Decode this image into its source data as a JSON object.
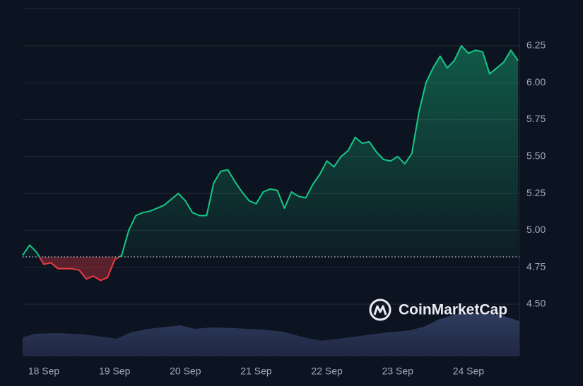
{
  "chart_data": {
    "type": "line",
    "x": [
      17.7,
      17.8,
      17.9,
      18.0,
      18.1,
      18.2,
      18.3,
      18.4,
      18.5,
      18.6,
      18.7,
      18.8,
      18.9,
      19.0,
      19.1,
      19.2,
      19.3,
      19.4,
      19.5,
      19.6,
      19.7,
      19.8,
      19.9,
      20.0,
      20.1,
      20.2,
      20.3,
      20.4,
      20.5,
      20.6,
      20.7,
      20.8,
      20.9,
      21.0,
      21.1,
      21.2,
      21.3,
      21.4,
      21.5,
      21.6,
      21.7,
      21.8,
      21.9,
      22.0,
      22.1,
      22.2,
      22.3,
      22.4,
      22.5,
      22.6,
      22.7,
      22.8,
      22.9,
      23.0,
      23.1,
      23.2,
      23.3,
      23.4,
      23.5,
      23.6,
      23.7,
      23.8,
      23.9,
      24.0,
      24.1,
      24.2,
      24.3,
      24.4,
      24.5,
      24.6,
      24.7
    ],
    "series": [
      {
        "values": [
          4.83,
          4.9,
          4.85,
          4.77,
          4.78,
          4.74,
          4.74,
          4.74,
          4.73,
          4.67,
          4.69,
          4.66,
          4.68,
          4.8,
          4.83,
          5.0,
          5.1,
          5.12,
          5.13,
          5.15,
          5.17,
          5.21,
          5.25,
          5.2,
          5.12,
          5.1,
          5.1,
          5.32,
          5.4,
          5.41,
          5.33,
          5.26,
          5.2,
          5.18,
          5.26,
          5.28,
          5.27,
          5.15,
          5.26,
          5.23,
          5.22,
          5.31,
          5.38,
          5.47,
          5.43,
          5.5,
          5.54,
          5.63,
          5.59,
          5.6,
          5.53,
          5.48,
          5.47,
          5.5,
          5.45,
          5.52,
          5.8,
          6.0,
          6.1,
          6.18,
          6.1,
          6.15,
          6.25,
          6.2,
          6.22,
          6.21,
          6.06,
          6.1,
          6.14,
          6.22,
          6.15
        ],
        "color_up": "#16c784",
        "color_down": "#ea3943"
      }
    ],
    "baseline": 4.82,
    "xlim": [
      17.7,
      24.72
    ],
    "xticks": [
      {
        "value": 18,
        "label": "18 Sep"
      },
      {
        "value": 19,
        "label": "19 Sep"
      },
      {
        "value": 20,
        "label": "20 Sep"
      },
      {
        "value": 21,
        "label": "21 Sep"
      },
      {
        "value": 22,
        "label": "22 Sep"
      },
      {
        "value": 23,
        "label": "23 Sep"
      },
      {
        "value": 24,
        "label": "24 Sep"
      }
    ],
    "ylim": [
      4.146,
      6.503
    ],
    "yticks": [
      {
        "value": 4.5,
        "label": "4.50"
      },
      4.75,
      {
        "value": 5,
        "label": "5.00"
      },
      5.25,
      {
        "value": 5.5,
        "label": "5.50"
      },
      5.75,
      {
        "value": 6,
        "label": "6.00"
      },
      6.25
    ],
    "grid": true,
    "watermark": "CoinMarketCap"
  }
}
